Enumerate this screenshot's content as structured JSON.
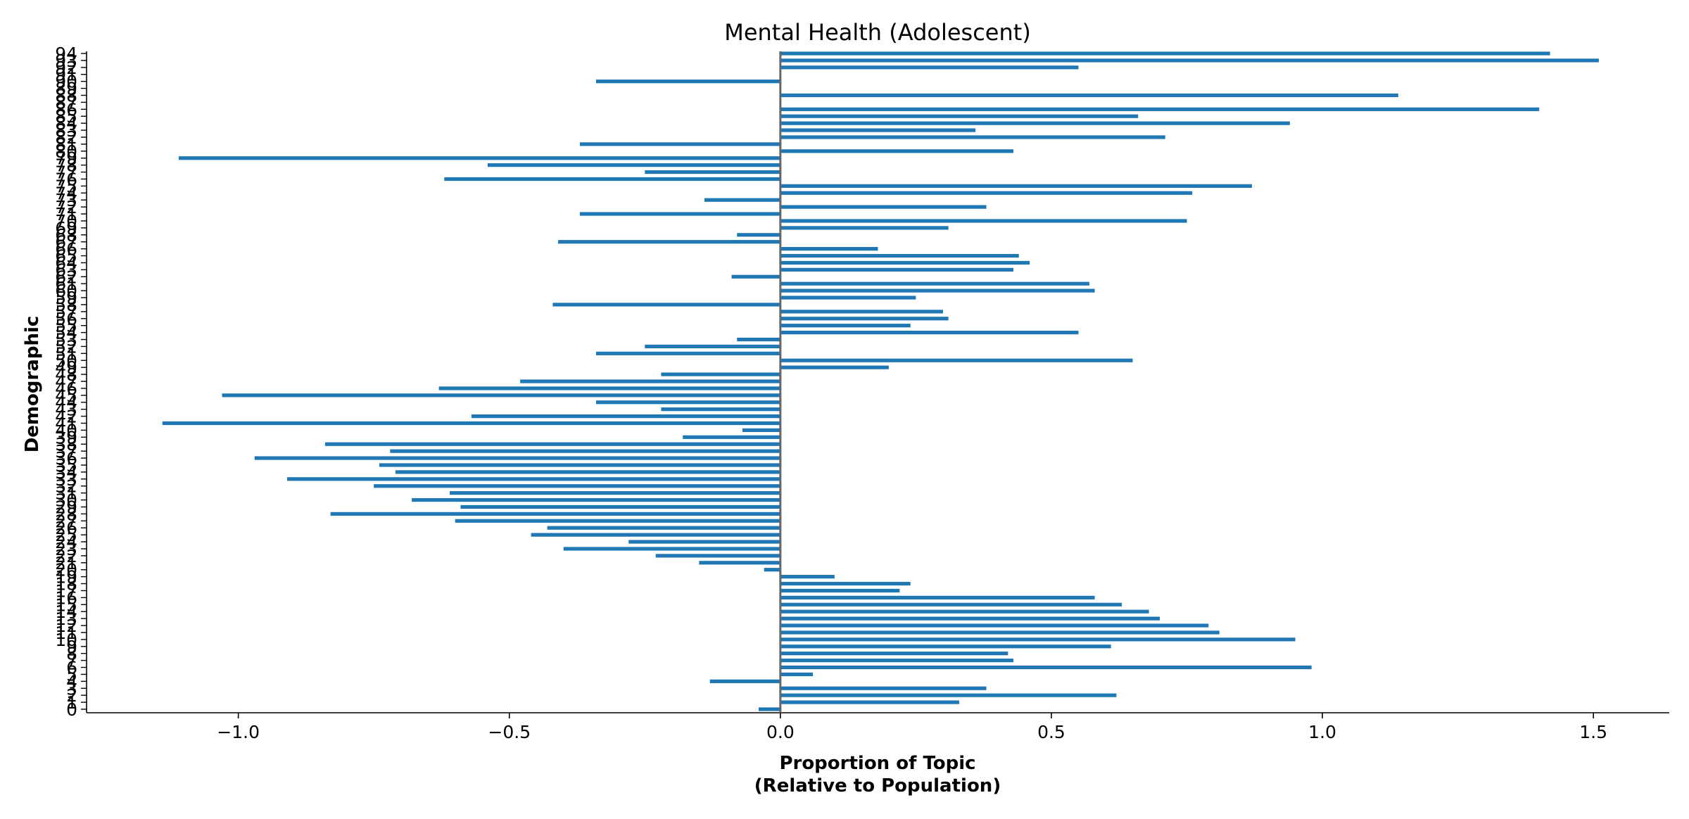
{
  "chart_data": {
    "type": "bar",
    "orientation": "horizontal",
    "title": "Mental Health (Adolescent)",
    "xlabel_lines": [
      "Proportion of Topic",
      "(Relative to Population)"
    ],
    "ylabel": "Demographic",
    "xlim": [
      -1.28,
      1.64
    ],
    "x_ticks": [
      -1.0,
      -0.5,
      0.0,
      0.5,
      1.0,
      1.5
    ],
    "x_tick_labels": [
      "−1.0",
      "−0.5",
      "0.0",
      "0.5",
      "1.0",
      "1.5"
    ],
    "grid": false,
    "color": "#1f77b4",
    "categories": [
      0,
      1,
      2,
      3,
      4,
      5,
      6,
      7,
      8,
      9,
      10,
      11,
      12,
      13,
      14,
      15,
      16,
      17,
      18,
      19,
      20,
      21,
      22,
      23,
      24,
      25,
      26,
      27,
      28,
      29,
      30,
      31,
      32,
      33,
      34,
      35,
      36,
      37,
      38,
      39,
      40,
      41,
      42,
      43,
      44,
      45,
      46,
      47,
      48,
      49,
      50,
      51,
      52,
      53,
      54,
      55,
      56,
      57,
      58,
      59,
      60,
      61,
      62,
      63,
      64,
      65,
      66,
      67,
      68,
      69,
      70,
      71,
      72,
      73,
      74,
      75,
      76,
      77,
      78,
      79,
      80,
      81,
      82,
      83,
      84,
      85,
      86,
      87,
      88,
      89,
      90,
      91,
      92,
      93,
      94
    ],
    "values": [
      -0.04,
      0.33,
      0.62,
      0.38,
      -0.13,
      0.06,
      0.98,
      0.43,
      0.42,
      0.61,
      0.95,
      0.81,
      0.79,
      0.7,
      0.68,
      0.63,
      0.58,
      0.22,
      0.24,
      0.1,
      -0.03,
      -0.15,
      -0.23,
      -0.4,
      -0.28,
      -0.46,
      -0.43,
      -0.6,
      -0.83,
      -0.59,
      -0.68,
      -0.61,
      -0.75,
      -0.91,
      -0.71,
      -0.74,
      -0.97,
      -0.72,
      -0.84,
      -0.18,
      -0.07,
      -1.14,
      -0.57,
      -0.22,
      -0.34,
      -1.03,
      -0.63,
      -0.48,
      -0.22,
      0.2,
      0.65,
      -0.34,
      -0.25,
      -0.08,
      0.55,
      0.24,
      0.31,
      0.3,
      -0.42,
      0.25,
      0.58,
      0.57,
      -0.09,
      0.43,
      0.46,
      0.44,
      0.18,
      -0.41,
      -0.08,
      0.31,
      0.75,
      -0.37,
      0.38,
      -0.14,
      0.76,
      0.87,
      -0.62,
      -0.25,
      -0.54,
      -1.11,
      0.43,
      -0.37,
      0.71,
      0.36,
      0.94,
      0.66,
      1.4,
      0.0,
      1.14,
      0.0,
      -0.34,
      0.0,
      0.55,
      1.51,
      1.42
    ]
  }
}
